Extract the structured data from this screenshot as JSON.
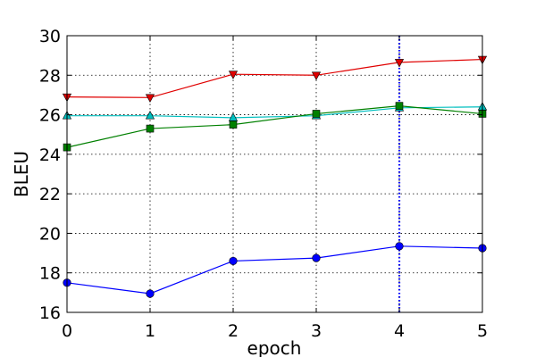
{
  "chart_data": {
    "type": "line",
    "xlabel": "epoch",
    "ylabel": "BLEU",
    "xlim": [
      0,
      5
    ],
    "ylim": [
      16,
      30
    ],
    "xticks": [
      0,
      1,
      2,
      3,
      4,
      5
    ],
    "yticks": [
      16,
      18,
      20,
      22,
      24,
      26,
      28,
      30
    ],
    "grid": true,
    "vline": {
      "x": 4,
      "color": "#0000ff"
    },
    "series": [
      {
        "color": "#e00000",
        "marker": "triangle-down",
        "x": [
          0,
          1,
          2,
          3,
          4,
          5
        ],
        "y": [
          26.9,
          26.87,
          28.05,
          28.0,
          28.65,
          28.8
        ]
      },
      {
        "color": "#00bfbf",
        "marker": "triangle-up",
        "x": [
          0,
          1,
          2,
          3,
          4,
          5
        ],
        "y": [
          25.95,
          25.95,
          25.85,
          25.95,
          26.35,
          26.4
        ]
      },
      {
        "color": "#008000",
        "marker": "square",
        "x": [
          0,
          1,
          2,
          3,
          4,
          5
        ],
        "y": [
          24.35,
          25.3,
          25.5,
          26.05,
          26.45,
          26.05
        ]
      },
      {
        "color": "#0000ff",
        "marker": "circle",
        "x": [
          0,
          1,
          2,
          3,
          4,
          5
        ],
        "y": [
          17.5,
          16.95,
          18.6,
          18.75,
          19.35,
          19.25
        ]
      }
    ]
  }
}
